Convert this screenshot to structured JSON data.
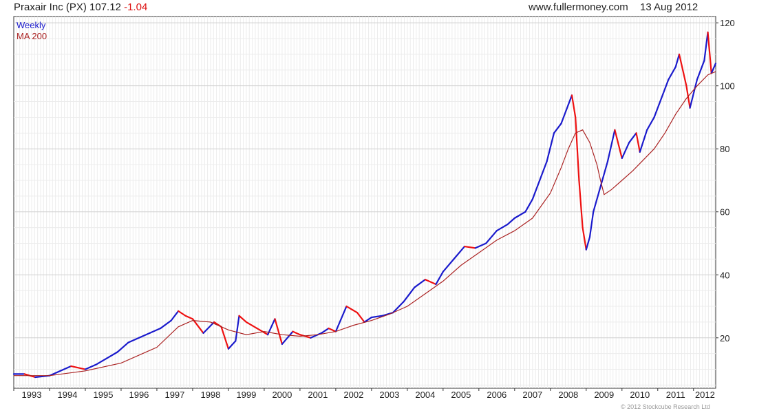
{
  "header": {
    "title": "Praxair Inc (PX)",
    "price": "107.12",
    "change": "-1.04",
    "site": "www.fullermoney.com",
    "date": "13 Aug 2012"
  },
  "legend": {
    "weekly": "Weekly",
    "ma": "MA 200"
  },
  "copyright": "© 2012 Stockcube Research Ltd",
  "colors": {
    "price_up": "#1a1acc",
    "price_down": "#ee1111",
    "ma": "#aa2222",
    "grid": "#d8d8d8",
    "axis": "#333333"
  },
  "chart_data": {
    "type": "line",
    "title": "Praxair Inc (PX)",
    "xlabel": "",
    "ylabel": "",
    "y_axis_side": "right",
    "grid": true,
    "legend_position": "top-left",
    "xlim": [
      1993.0,
      2012.62
    ],
    "ylim": [
      4,
      122
    ],
    "y_ticks": [
      20,
      40,
      60,
      80,
      100,
      120
    ],
    "x_ticks": [
      "1993",
      "1994",
      "1995",
      "1996",
      "1997",
      "1998",
      "1999",
      "2000",
      "2001",
      "2002",
      "2003",
      "2004",
      "2005",
      "2006",
      "2007",
      "2008",
      "2009",
      "2010",
      "2011",
      "2012"
    ],
    "series": [
      {
        "name": "Weekly",
        "x": [
          1993.0,
          1993.3,
          1993.6,
          1994.0,
          1994.3,
          1994.6,
          1995.0,
          1995.3,
          1995.6,
          1995.9,
          1996.2,
          1996.5,
          1996.8,
          1997.1,
          1997.4,
          1997.6,
          1997.8,
          1998.0,
          1998.3,
          1998.6,
          1998.8,
          1999.0,
          1999.2,
          1999.3,
          1999.5,
          1999.8,
          2000.1,
          2000.3,
          2000.5,
          2000.8,
          2001.0,
          2001.3,
          2001.6,
          2001.8,
          2002.0,
          2002.3,
          2002.6,
          2002.8,
          2003.0,
          2003.3,
          2003.6,
          2003.9,
          2004.2,
          2004.5,
          2004.8,
          2005.0,
          2005.3,
          2005.6,
          2005.9,
          2006.2,
          2006.5,
          2006.8,
          2007.0,
          2007.3,
          2007.5,
          2007.7,
          2007.9,
          2008.1,
          2008.3,
          2008.5,
          2008.6,
          2008.7,
          2008.8,
          2008.9,
          2009.0,
          2009.1,
          2009.2,
          2009.4,
          2009.6,
          2009.8,
          2010.0,
          2010.2,
          2010.4,
          2010.5,
          2010.7,
          2010.9,
          2011.1,
          2011.3,
          2011.5,
          2011.6,
          2011.8,
          2011.9,
          2012.1,
          2012.3,
          2012.4,
          2012.5,
          2012.62
        ],
        "y": [
          8.5,
          8.5,
          7.5,
          8.0,
          9.5,
          11.0,
          10.0,
          11.5,
          13.5,
          15.5,
          18.5,
          20.0,
          21.5,
          23.0,
          25.5,
          28.5,
          27.0,
          26.0,
          21.5,
          25.0,
          23.5,
          16.5,
          19.0,
          27.0,
          25.0,
          23.0,
          21.0,
          26.0,
          18.0,
          22.0,
          21.0,
          20.0,
          21.5,
          23.0,
          22.0,
          30.0,
          28.0,
          25.0,
          26.5,
          27.0,
          28.0,
          31.5,
          36.0,
          38.5,
          37.0,
          41.0,
          45.0,
          49.0,
          48.5,
          50.0,
          54.0,
          56.0,
          58.0,
          60.0,
          64.0,
          70.0,
          76.0,
          85.0,
          88.0,
          94.0,
          97.0,
          90.0,
          70.0,
          55.0,
          48.0,
          52.0,
          60.0,
          68.0,
          76.0,
          86.0,
          77.0,
          82.0,
          85.0,
          79.0,
          86.0,
          90.0,
          96.0,
          102.0,
          106.0,
          110.0,
          100.0,
          93.0,
          102.0,
          108.0,
          117.0,
          104.0,
          107.12
        ]
      },
      {
        "name": "MA 200",
        "x": [
          1993.0,
          1994.0,
          1995.0,
          1996.0,
          1997.0,
          1997.6,
          1998.0,
          1998.5,
          1999.0,
          1999.5,
          2000.0,
          2000.5,
          2001.0,
          2001.5,
          2002.0,
          2002.5,
          2003.0,
          2003.5,
          2004.0,
          2004.5,
          2005.0,
          2005.5,
          2006.0,
          2006.5,
          2007.0,
          2007.5,
          2008.0,
          2008.3,
          2008.5,
          2008.7,
          2008.9,
          2009.1,
          2009.3,
          2009.4,
          2009.5,
          2009.7,
          2010.0,
          2010.3,
          2010.6,
          2010.9,
          2011.2,
          2011.5,
          2011.8,
          2012.1,
          2012.4,
          2012.62
        ],
        "y": [
          8.0,
          8.0,
          9.5,
          12.0,
          17.0,
          23.5,
          25.5,
          25.0,
          22.5,
          21.0,
          22.0,
          21.0,
          20.5,
          21.0,
          22.0,
          24.0,
          25.5,
          27.5,
          30.0,
          34.0,
          38.0,
          43.0,
          47.0,
          51.0,
          54.0,
          58.0,
          66.0,
          74.0,
          80.0,
          85.0,
          86.0,
          82.0,
          75.0,
          70.0,
          65.5,
          67.0,
          70.0,
          73.0,
          76.5,
          80.0,
          85.0,
          91.0,
          96.0,
          100.0,
          103.5,
          104.5
        ]
      }
    ]
  }
}
